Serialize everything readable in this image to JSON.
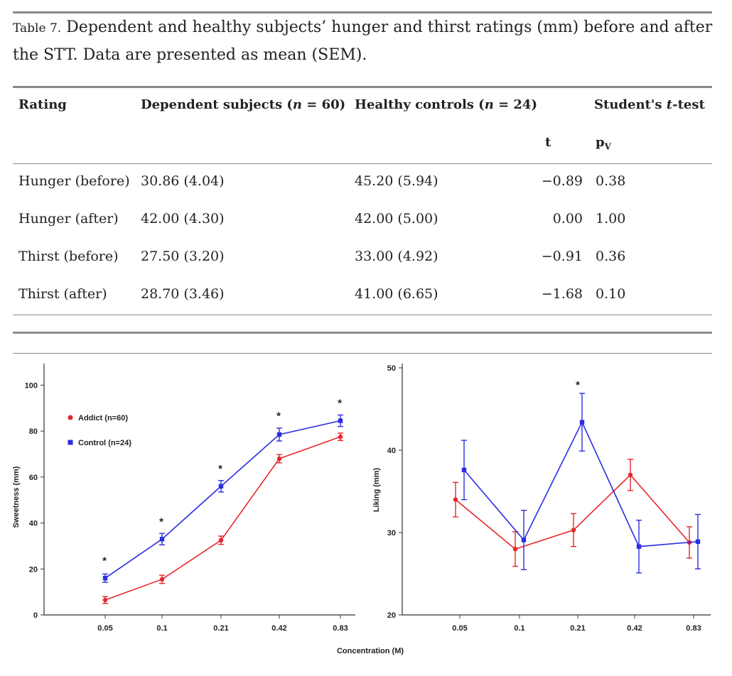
{
  "caption": {
    "label": "Table 7.",
    "text": "Dependent and healthy subjects’ hunger and thirst ratings (mm) before and after the STT. Data are presented as mean (SEM)."
  },
  "table": {
    "headers": {
      "rating": "Rating",
      "dependent": "Dependent subjects (",
      "dependent_n": "n",
      "dependent_tail": " = 60)",
      "healthy": "Healthy controls (",
      "healthy_n": "n",
      "healthy_tail": " = 24)",
      "ttest": "Student's ",
      "ttest_t": "t",
      "ttest_tail": "-test",
      "t": "t",
      "pv": "p",
      "pv_sub": "V"
    },
    "rows": [
      {
        "rating": "Hunger (before)",
        "dependent": "30.86 (4.04)",
        "healthy": "45.20 (5.94)",
        "t": "−0.89",
        "p": "0.38"
      },
      {
        "rating": "Hunger (after)",
        "dependent": "42.00 (4.30)",
        "healthy": "42.00 (5.00)",
        "t": "0.00",
        "p": "1.00"
      },
      {
        "rating": "Thirst (before)",
        "dependent": "27.50 (3.20)",
        "healthy": "33.00 (4.92)",
        "t": "−0.91",
        "p": "0.36"
      },
      {
        "rating": "Thirst (after)",
        "dependent": "28.70 (3.46)",
        "healthy": "41.00 (6.65)",
        "t": "−1.68",
        "p": "0.10"
      }
    ]
  },
  "colors": {
    "addict": "#e8262a",
    "control": "#2b2ee0"
  },
  "xlabel_shared": "Concentration (M)",
  "chart_data": [
    {
      "type": "line",
      "ylabel": "Sweetness (mm)",
      "categories": [
        "0.05",
        "0.1",
        "0.21",
        "0.42",
        "0.83"
      ],
      "ylim": [
        0,
        110
      ],
      "yticks": [
        0,
        20,
        40,
        60,
        80,
        100
      ],
      "legend_position": "top-left",
      "series": [
        {
          "name": "Addict (n=60)",
          "marker": "circle",
          "values": [
            6.5,
            15.5,
            32.5,
            68,
            77.5
          ],
          "errors": [
            1.5,
            1.8,
            1.8,
            1.8,
            1.6
          ]
        },
        {
          "name": "Control (n=24)",
          "marker": "square",
          "values": [
            16,
            33,
            56,
            78.5,
            84.5
          ],
          "errors": [
            1.8,
            2.5,
            2.5,
            2.8,
            2.5
          ]
        }
      ],
      "annotations": [
        {
          "category": "0.05",
          "text": "*",
          "y": 24
        },
        {
          "category": "0.1",
          "text": "*",
          "y": 41
        },
        {
          "category": "0.21",
          "text": "*",
          "y": 64
        },
        {
          "category": "0.42",
          "text": "*",
          "y": 87
        },
        {
          "category": "0.83",
          "text": "*",
          "y": 92.5
        }
      ]
    },
    {
      "type": "line",
      "ylabel": "Liking (mm)",
      "categories": [
        "0.05",
        "0.1",
        "0.21",
        "0.42",
        "0.83"
      ],
      "ylim": [
        20,
        50
      ],
      "yticks": [
        20,
        30,
        40,
        50
      ],
      "series": [
        {
          "name": "Addict (n=60)",
          "marker": "circle",
          "values": [
            34,
            28,
            30.3,
            37,
            28.8
          ],
          "errors": [
            2.1,
            2.1,
            2.0,
            1.9,
            1.9
          ]
        },
        {
          "name": "Control (n=24)",
          "marker": "square",
          "values": [
            37.6,
            29.1,
            43.4,
            28.3,
            28.9
          ],
          "errors": [
            3.6,
            3.6,
            3.5,
            3.2,
            3.3
          ]
        }
      ],
      "annotations": [
        {
          "category": "0.21",
          "text": "*",
          "y": 48
        }
      ]
    }
  ]
}
